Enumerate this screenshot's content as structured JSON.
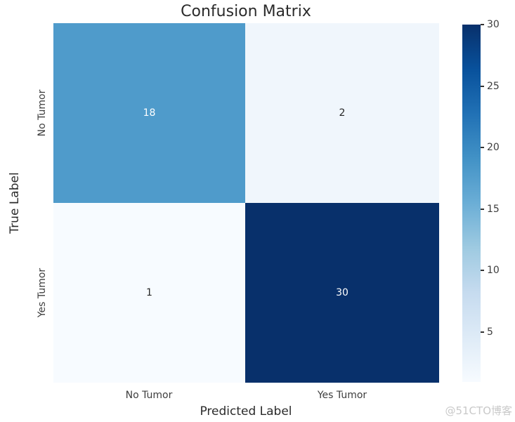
{
  "title": "Confusion Matrix",
  "watermark": "@51CTO博客",
  "axes": {
    "x_label": "Predicted Label",
    "y_label": "True Label",
    "x_tick_labels": [
      "No Tumor",
      "Yes Tumor"
    ],
    "y_tick_labels": [
      "No Tumor",
      "Yes Tumor"
    ]
  },
  "chart_data": {
    "type": "heatmap",
    "title": "Confusion Matrix",
    "xlabel": "Predicted Label",
    "ylabel": "True Label",
    "x_categories": [
      "No Tumor",
      "Yes Tumor"
    ],
    "y_categories": [
      "No Tumor",
      "Yes Tumor"
    ],
    "values": [
      [
        18,
        2
      ],
      [
        1,
        30
      ]
    ],
    "annotations": [
      [
        "18",
        "2"
      ],
      [
        "1",
        "30"
      ]
    ],
    "colormap": "Blues",
    "vmin": 1,
    "vmax": 30,
    "colorbar_ticks": [
      5,
      10,
      15,
      20,
      25,
      30
    ],
    "colorbar_position": "right",
    "grid": false,
    "legend_position": "right colorbar"
  },
  "cells": [
    {
      "value": "18",
      "bg": "#4f9bcb",
      "fg": "#ffffff"
    },
    {
      "value": "2",
      "bg": "#f0f6fc",
      "fg": "#262626"
    },
    {
      "value": "1",
      "bg": "#f7fbff",
      "fg": "#262626"
    },
    {
      "value": "30",
      "bg": "#08306b",
      "fg": "#ffffff"
    }
  ],
  "colorbar": {
    "tick_labels_top_to_bottom": [
      "30",
      "25",
      "20",
      "15",
      "10",
      "5"
    ],
    "gradient_stops_low_to_high": [
      "#f7fbff",
      "#deebf7",
      "#c6dbef",
      "#9ecae1",
      "#6baed6",
      "#4292c6",
      "#2171b5",
      "#08519c",
      "#08306b"
    ]
  },
  "colors": {
    "background": "#ffffff",
    "title_text": "#2b2b2b",
    "tick_text": "#3d3d3d",
    "annotation_dark": "#262626",
    "annotation_light": "#ffffff",
    "watermark": "#c9c9c9"
  }
}
